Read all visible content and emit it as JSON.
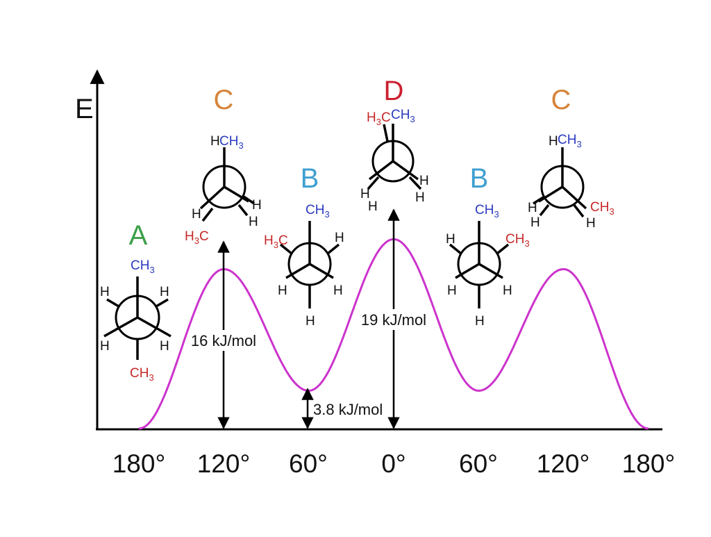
{
  "axis": {
    "y_label": "E"
  },
  "x_ticks": [
    "180°",
    "120°",
    "60°",
    "0°",
    "60°",
    "120°",
    "180°"
  ],
  "conformers": [
    {
      "label": "A",
      "color": "#3ea04a"
    },
    {
      "label": "C",
      "color": "#d6843a"
    },
    {
      "label": "B",
      "color": "#3f9fd0"
    },
    {
      "label": "D",
      "color": "#cc2030"
    },
    {
      "label": "B",
      "color": "#3f9fd0"
    },
    {
      "label": "C",
      "color": "#d6843a"
    }
  ],
  "annotations": [
    {
      "text": "16 kJ/mol"
    },
    {
      "text": "3.8 kJ/mol"
    },
    {
      "text": "19 kJ/mol"
    }
  ],
  "chemistry": {
    "methyl": "CH",
    "methyl_left_prefix": "H",
    "methyl_left_suffix": "C",
    "subscript": "3",
    "hydrogen": "H",
    "front_color": "#2a3ac0",
    "back_color": "#c62828"
  },
  "curve_color": "#cc33cc",
  "chart_data": {
    "type": "line",
    "xlabel": "",
    "ylabel": "E",
    "x": [
      "180°",
      "120°",
      "60°",
      "0°",
      "60°",
      "120°",
      "180°"
    ],
    "series": [
      {
        "values": [
          0,
          16,
          3.8,
          19,
          3.8,
          16,
          0
        ]
      }
    ],
    "annotations": [
      "16 kJ/mol",
      "3.8 kJ/mol",
      "19 kJ/mol"
    ],
    "grid": false
  }
}
